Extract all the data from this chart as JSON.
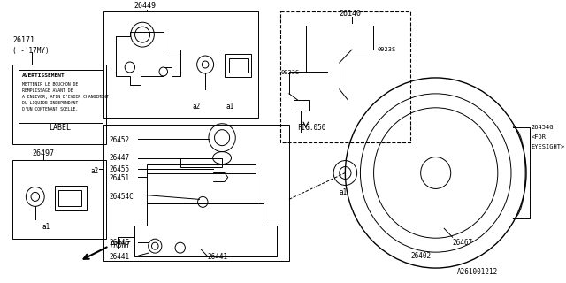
{
  "bg_color": "#ffffff",
  "line_color": "#000000",
  "title_code": "A261001212",
  "figsize": [
    6.4,
    3.2
  ],
  "dpi": 100,
  "xlim": [
    0,
    640
  ],
  "ylim": [
    0,
    320
  ]
}
